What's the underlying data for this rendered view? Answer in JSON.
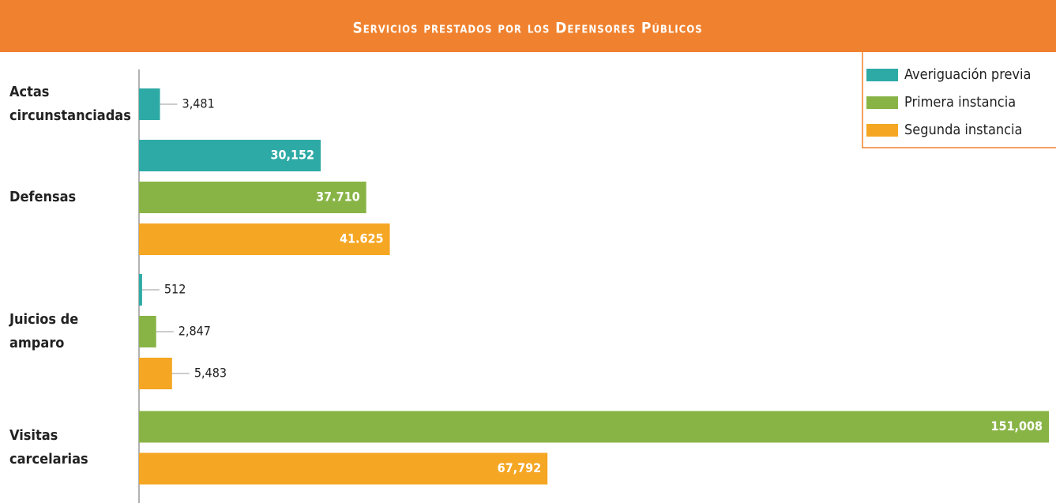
{
  "chart_data": {
    "type": "bar",
    "orientation": "horizontal",
    "title": "Servicios prestados por los Defensores Públicos",
    "categories": [
      "Actas circunstanciadas",
      "Defensas",
      "Juicios de amparo",
      "Visitas carcelarias"
    ],
    "series": [
      {
        "name": "Averiguación previa",
        "color": "#2eaaa6",
        "values": [
          3481,
          30152,
          512,
          null
        ],
        "value_labels": [
          "3,481",
          "30,152",
          "512",
          null
        ]
      },
      {
        "name": "Primera instancia",
        "color": "#88b446",
        "values": [
          null,
          37710,
          2847,
          151008
        ],
        "value_labels": [
          null,
          "37.710",
          "2,847",
          "151,008"
        ]
      },
      {
        "name": "Segunda instancia",
        "color": "#f5a623",
        "values": [
          null,
          41625,
          5483,
          67792
        ],
        "value_labels": [
          null,
          "41.625",
          "5,483",
          "67,792"
        ]
      }
    ],
    "legend": "top-right",
    "grid": false
  }
}
